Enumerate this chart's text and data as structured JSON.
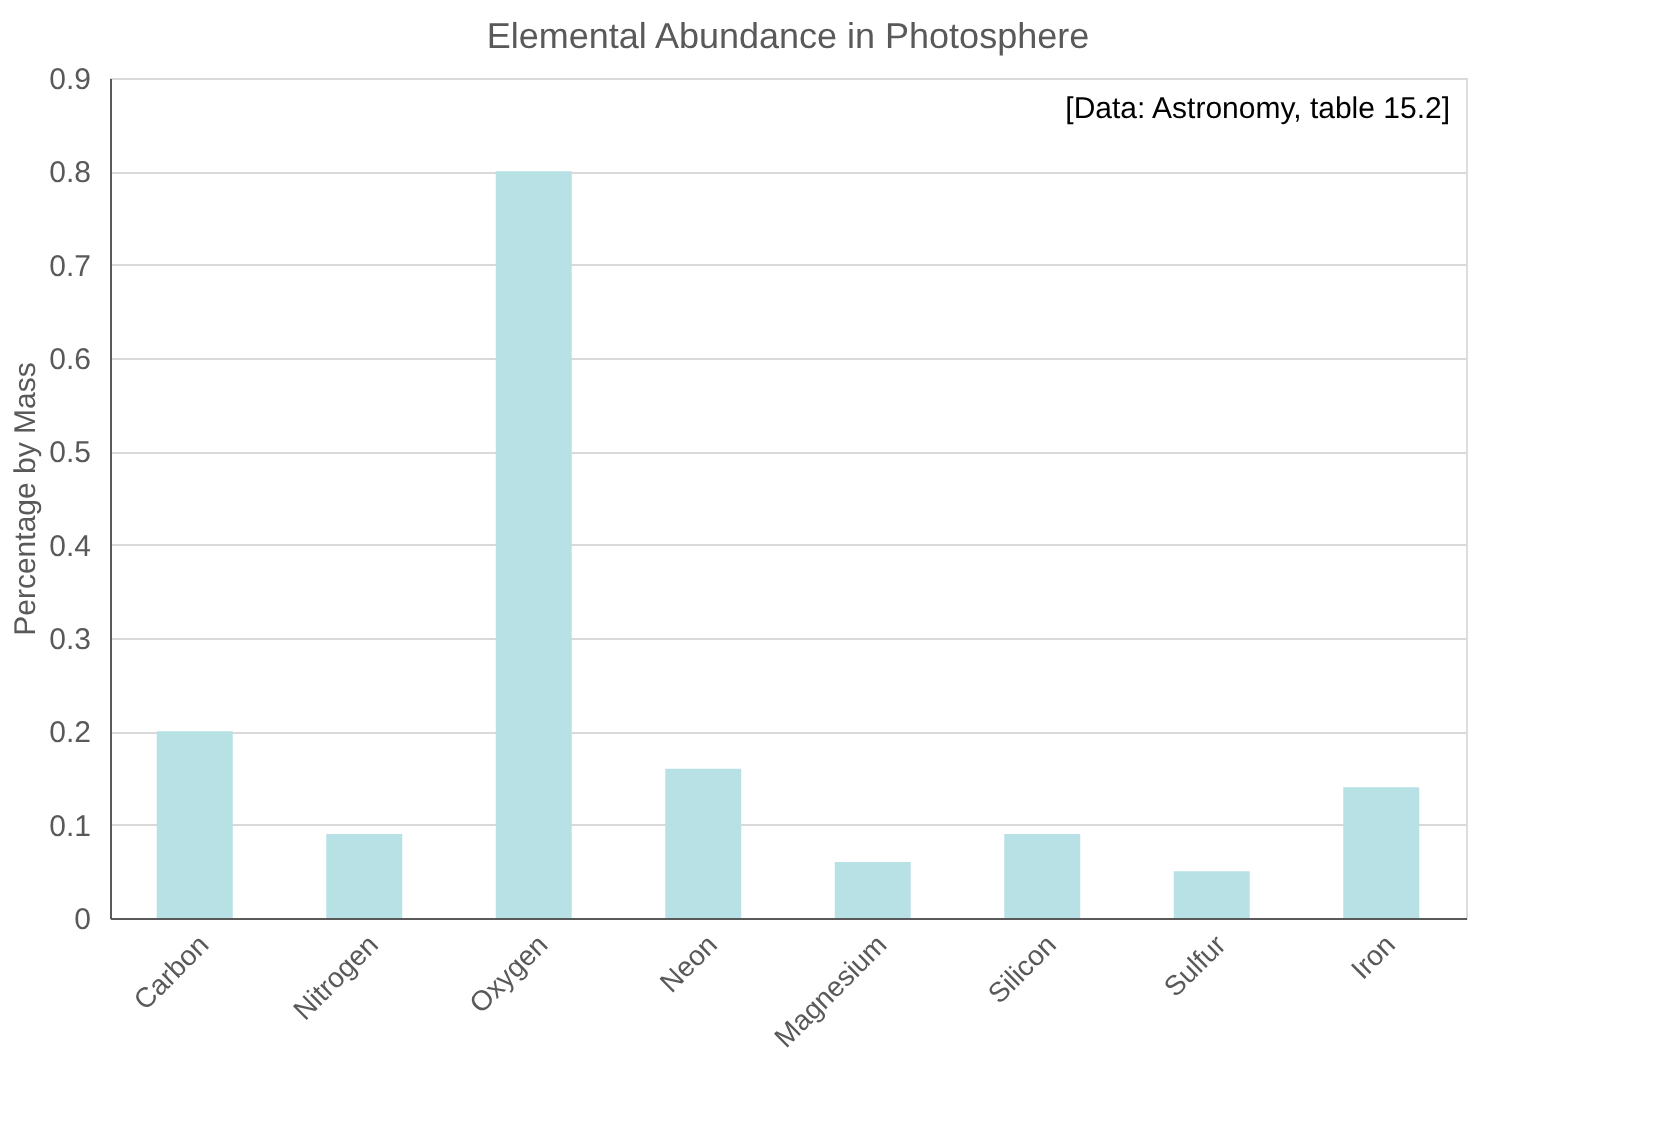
{
  "chart_data": {
    "type": "bar",
    "title": "Elemental Abundance in Photosphere",
    "ylabel": "Percentage by Mass",
    "categories": [
      "Carbon",
      "Nitrogen",
      "Oxygen",
      "Neon",
      "Magnesium",
      "Silicon",
      "Sulfur",
      "Iron"
    ],
    "values": [
      0.2,
      0.09,
      0.8,
      0.16,
      0.06,
      0.09,
      0.05,
      0.14
    ],
    "color": "#b7e1e4",
    "ylim": [
      0,
      0.9
    ],
    "yticks": [
      0,
      0.1,
      0.2,
      0.3,
      0.4,
      0.5,
      0.6,
      0.7,
      0.8,
      0.9
    ],
    "grid": "y",
    "annotations": [
      "[Data: Astronomy, table 15.2]"
    ]
  }
}
